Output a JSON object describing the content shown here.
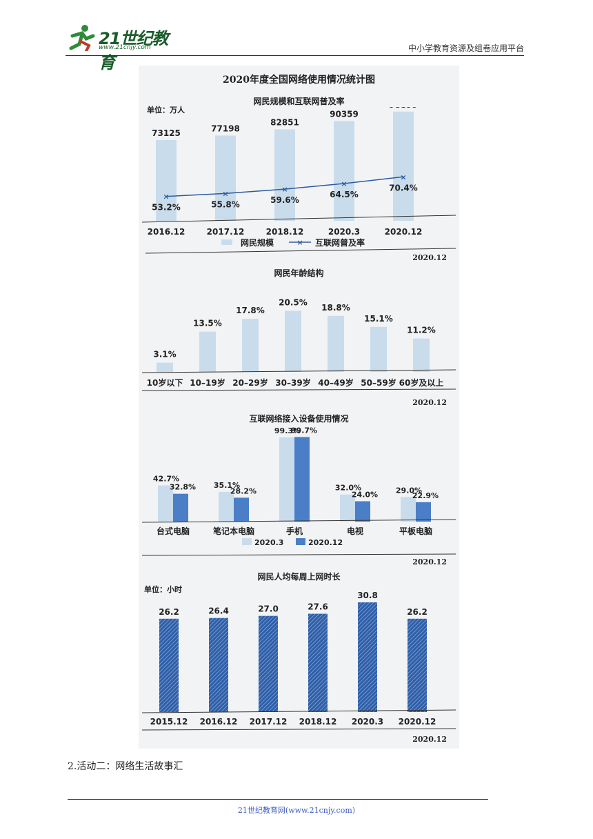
{
  "header": {
    "logo_text": "21世纪教育",
    "logo_url": "www.21cnjy.com",
    "right_text": "中小学教育资源及组卷应用平台"
  },
  "figure": {
    "title": "2020年度全国网络使用情况统计图"
  },
  "colors": {
    "bar_light": "#c9dcec",
    "bar_blue": "#4a7fc8",
    "bar_hatch": "#2f5fa8",
    "line": "#2c5aa0"
  },
  "chart_data": [
    {
      "type": "bar",
      "title": "网民规模和互联网普及率",
      "unit_label": "单位：万人",
      "date_stamp": "2020.12",
      "categories": [
        "2016.12",
        "2017.12",
        "2018.12",
        "2020.3",
        "2020.12"
      ],
      "series": [
        {
          "name": "网民规模",
          "type": "bar",
          "values": [
            73125,
            77198,
            82851,
            90359,
            98899
          ]
        },
        {
          "name": "互联网普及率",
          "type": "line",
          "values": [
            53.2,
            55.8,
            59.6,
            64.5,
            70.4
          ],
          "labels": [
            "53.2%",
            "55.8%",
            "59.6%",
            "64.5%",
            "70.4%"
          ]
        }
      ],
      "legend": [
        "网民规模",
        "互联网普及率"
      ],
      "ylim": [
        0,
        100000
      ]
    },
    {
      "type": "bar",
      "title": "网民年龄结构",
      "date_stamp": "2020.12",
      "categories": [
        "10岁以下",
        "10–19岁",
        "20–29岁",
        "30–39岁",
        "40–49岁",
        "50–59岁",
        "60岁及以上"
      ],
      "values": [
        3.1,
        13.5,
        17.8,
        20.5,
        18.8,
        15.1,
        11.2
      ],
      "labels": [
        "3.1%",
        "13.5%",
        "17.8%",
        "20.5%",
        "18.8%",
        "15.1%",
        "11.2%"
      ],
      "ylim": [
        0,
        25
      ]
    },
    {
      "type": "bar",
      "title": "互联网络接入设备使用情况",
      "date_stamp": "2020.12",
      "categories": [
        "台式电脑",
        "笔记本电脑",
        "手机",
        "电视",
        "平板电脑"
      ],
      "series": [
        {
          "name": "2020.3",
          "values": [
            42.7,
            35.1,
            99.3,
            32.0,
            29.0
          ],
          "labels": [
            "42.7%",
            "35.1%",
            "99.3%",
            "32.0%",
            "29.0%"
          ]
        },
        {
          "name": "2020.12",
          "values": [
            32.8,
            28.2,
            99.7,
            24.0,
            22.9
          ],
          "labels": [
            "32.8%",
            "28.2%",
            "99.7%",
            "24.0%",
            "22.9%"
          ]
        }
      ],
      "legend": [
        "2020.3",
        "2020.12"
      ],
      "ylim": [
        0,
        100
      ]
    },
    {
      "type": "bar",
      "title": "网民人均每周上网时长",
      "unit_label": "单位：小时",
      "date_stamp": "2020.12",
      "categories": [
        "2015.12",
        "2016.12",
        "2017.12",
        "2018.12",
        "2020.3",
        "2020.12"
      ],
      "values": [
        26.2,
        26.4,
        27.0,
        27.6,
        30.8,
        26.2
      ],
      "labels": [
        "26.2",
        "26.4",
        "27.0",
        "27.6",
        "30.8",
        "26.2"
      ],
      "ylim": [
        0,
        31
      ]
    }
  ],
  "body": {
    "caption": "2.活动二：网络生活故事汇"
  },
  "footer": {
    "text": "21世纪教育网(www.21cnjy.com)"
  }
}
